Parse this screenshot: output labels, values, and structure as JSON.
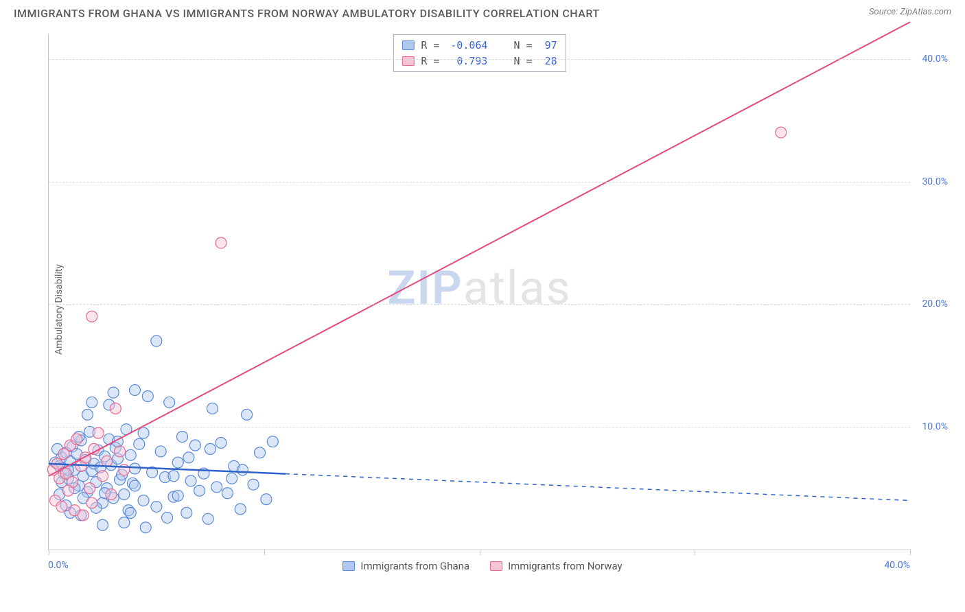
{
  "title": "IMMIGRANTS FROM GHANA VS IMMIGRANTS FROM NORWAY AMBULATORY DISABILITY CORRELATION CHART",
  "source_label": "Source:",
  "source_name": "ZipAtlas.com",
  "y_axis_label": "Ambulatory Disability",
  "watermark_zip": "ZIP",
  "watermark_rest": "atlas",
  "chart": {
    "type": "scatter",
    "xlim": [
      0,
      40
    ],
    "ylim": [
      0,
      42
    ],
    "x_tick_min_label": "0.0%",
    "x_tick_max_label": "40.0%",
    "x_ticks_pct": [
      0,
      10,
      20,
      30,
      40
    ],
    "y_ticks": [
      {
        "pct": 10,
        "label": "10.0%"
      },
      {
        "pct": 20,
        "label": "20.0%"
      },
      {
        "pct": 30,
        "label": "30.0%"
      },
      {
        "pct": 40,
        "label": "40.0%"
      }
    ],
    "grid_color": "#d8d8d8",
    "axis_color": "#c5c5c5",
    "background_color": "#ffffff",
    "marker_radius": 8,
    "marker_fill_opacity": 0.45,
    "marker_stroke_width": 1.2,
    "series": [
      {
        "key": "ghana",
        "label": "Immigrants from Ghana",
        "color_fill": "#b0c7ee",
        "color_stroke": "#5a8ad8",
        "R": "-0.064",
        "N": "97",
        "trend": {
          "x1": 0,
          "y1": 7.0,
          "x2": 40,
          "y2": 4.0,
          "solid_until_x": 11,
          "color": "#2f62c9",
          "width": 2.5
        },
        "points": [
          [
            0.3,
            7.1
          ],
          [
            0.5,
            6.8
          ],
          [
            0.6,
            7.5
          ],
          [
            0.7,
            6.2
          ],
          [
            0.8,
            7.9
          ],
          [
            0.9,
            5.8
          ],
          [
            1.0,
            7.2
          ],
          [
            1.1,
            8.4
          ],
          [
            1.2,
            6.5
          ],
          [
            1.3,
            7.8
          ],
          [
            1.4,
            5.2
          ],
          [
            1.5,
            8.9
          ],
          [
            1.6,
            6.0
          ],
          [
            1.7,
            7.3
          ],
          [
            1.8,
            4.7
          ],
          [
            1.9,
            9.6
          ],
          [
            2.0,
            6.4
          ],
          [
            2.1,
            7.0
          ],
          [
            2.2,
            5.5
          ],
          [
            2.3,
            8.1
          ],
          [
            2.4,
            6.7
          ],
          [
            2.5,
            3.8
          ],
          [
            2.6,
            7.6
          ],
          [
            2.7,
            5.0
          ],
          [
            2.8,
            9.0
          ],
          [
            2.9,
            6.9
          ],
          [
            3.0,
            4.2
          ],
          [
            3.1,
            8.3
          ],
          [
            3.2,
            7.4
          ],
          [
            3.3,
            5.7
          ],
          [
            3.4,
            6.1
          ],
          [
            3.5,
            4.5
          ],
          [
            3.6,
            9.8
          ],
          [
            3.7,
            3.2
          ],
          [
            3.8,
            7.7
          ],
          [
            3.9,
            5.4
          ],
          [
            4.0,
            6.6
          ],
          [
            4.2,
            8.6
          ],
          [
            4.4,
            4.0
          ],
          [
            4.6,
            12.5
          ],
          [
            4.8,
            6.3
          ],
          [
            5.0,
            3.5
          ],
          [
            5.2,
            8.0
          ],
          [
            5.4,
            5.9
          ],
          [
            5.6,
            12.0
          ],
          [
            5.8,
            4.3
          ],
          [
            6.0,
            7.1
          ],
          [
            6.2,
            9.2
          ],
          [
            6.4,
            3.0
          ],
          [
            6.6,
            5.6
          ],
          [
            6.8,
            8.5
          ],
          [
            7.0,
            4.8
          ],
          [
            7.2,
            6.2
          ],
          [
            7.4,
            2.5
          ],
          [
            7.6,
            11.5
          ],
          [
            7.8,
            5.1
          ],
          [
            8.0,
            8.7
          ],
          [
            8.3,
            4.6
          ],
          [
            8.6,
            6.8
          ],
          [
            8.9,
            3.3
          ],
          [
            9.2,
            11.0
          ],
          [
            9.5,
            5.3
          ],
          [
            9.8,
            7.9
          ],
          [
            10.1,
            4.1
          ],
          [
            10.4,
            8.8
          ],
          [
            3.0,
            12.8
          ],
          [
            4.0,
            13.0
          ],
          [
            5.0,
            17.0
          ],
          [
            2.0,
            12.0
          ],
          [
            2.5,
            2.0
          ],
          [
            1.0,
            3.0
          ],
          [
            1.5,
            2.8
          ],
          [
            6.0,
            4.4
          ],
          [
            3.5,
            2.2
          ],
          [
            4.5,
            1.8
          ],
          [
            5.5,
            2.6
          ],
          [
            2.8,
            11.8
          ],
          [
            1.8,
            11.0
          ],
          [
            0.5,
            4.5
          ],
          [
            0.8,
            3.6
          ],
          [
            6.5,
            7.5
          ],
          [
            7.5,
            8.2
          ],
          [
            8.5,
            5.8
          ],
          [
            9.0,
            6.5
          ],
          [
            1.2,
            5.0
          ],
          [
            1.6,
            4.2
          ],
          [
            2.2,
            3.4
          ],
          [
            3.8,
            3.0
          ],
          [
            4.4,
            9.5
          ],
          [
            5.8,
            6.0
          ],
          [
            0.4,
            8.2
          ],
          [
            0.6,
            5.5
          ],
          [
            1.4,
            9.2
          ],
          [
            2.6,
            4.6
          ],
          [
            3.2,
            8.8
          ],
          [
            4.0,
            5.2
          ],
          [
            0.9,
            6.5
          ]
        ]
      },
      {
        "key": "norway",
        "label": "Immigrants from Norway",
        "color_fill": "#f6c4d4",
        "color_stroke": "#e46a93",
        "R": "0.793",
        "N": "28",
        "trend": {
          "x1": 0,
          "y1": 6.0,
          "x2": 40,
          "y2": 43.0,
          "solid_until_x": 40,
          "color": "#e74a7e",
          "width": 2.0
        },
        "points": [
          [
            0.2,
            6.5
          ],
          [
            0.4,
            7.0
          ],
          [
            0.5,
            5.8
          ],
          [
            0.7,
            7.8
          ],
          [
            0.8,
            6.2
          ],
          [
            1.0,
            8.5
          ],
          [
            1.1,
            5.5
          ],
          [
            1.3,
            9.0
          ],
          [
            1.5,
            6.8
          ],
          [
            1.7,
            7.5
          ],
          [
            1.9,
            5.0
          ],
          [
            2.1,
            8.2
          ],
          [
            2.3,
            9.5
          ],
          [
            2.5,
            6.0
          ],
          [
            2.7,
            7.2
          ],
          [
            2.9,
            4.5
          ],
          [
            3.1,
            11.5
          ],
          [
            3.3,
            8.0
          ],
          [
            3.5,
            6.5
          ],
          [
            0.3,
            4.0
          ],
          [
            0.6,
            3.5
          ],
          [
            0.9,
            4.8
          ],
          [
            1.2,
            3.2
          ],
          [
            1.6,
            2.8
          ],
          [
            2.0,
            3.8
          ],
          [
            2.0,
            19.0
          ],
          [
            8.0,
            25.0
          ],
          [
            34.0,
            34.0
          ]
        ]
      }
    ]
  },
  "legend_box": {
    "r_label": "R =",
    "n_label": "N ="
  }
}
